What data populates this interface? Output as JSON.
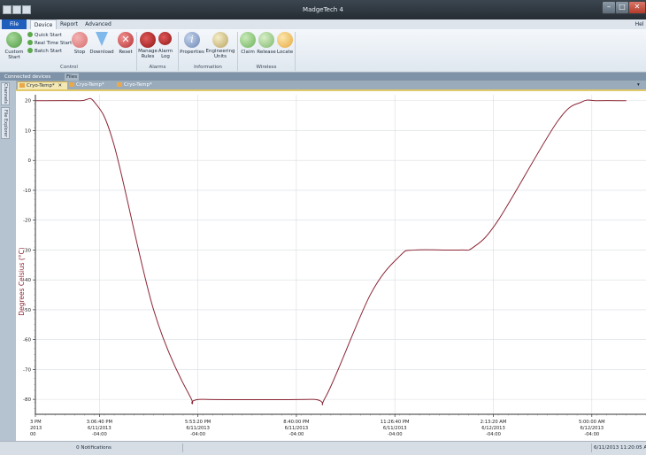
{
  "window": {
    "title": "MadgeTech 4"
  },
  "ribbon": {
    "tabs": [
      "File",
      "Device",
      "Report",
      "Advanced"
    ],
    "help_label": "Hel",
    "groups": {
      "control": {
        "label": "Control",
        "custom_start": "Custom\nStart",
        "quick_start": "Quick Start",
        "real_time_start": "Real Time Start",
        "batch_start": "Batch Start",
        "stop": "Stop",
        "download": "Download",
        "reset": "Reset"
      },
      "alarms": {
        "label": "Alarms",
        "manage_rules": "Manage\nRules",
        "alarm_log": "Alarm\nLog"
      },
      "information": {
        "label": "Information",
        "properties": "Properties",
        "engineering_units": "Engineering\nUnits"
      },
      "wireless": {
        "label": "Wireless",
        "claim": "Claim",
        "release": "Release",
        "locate": "Locate"
      }
    }
  },
  "connected_bar": {
    "tabs": [
      "Connected devices",
      "Files"
    ]
  },
  "side_tabs": [
    "Channels",
    "File Explorer"
  ],
  "document_tabs": [
    "Cryo-Temp*",
    "Cryo-Temp*",
    "Cryo-Temp*"
  ],
  "chart_data": {
    "type": "line",
    "ylabel": "Degrees Celsius (°C)",
    "ylim": [
      -85,
      22
    ],
    "yticks": [
      20,
      10,
      0,
      -10,
      -20,
      -30,
      -40,
      -50,
      -60,
      -70,
      -80
    ],
    "xlim": [
      0,
      62
    ],
    "xticks": [
      {
        "x": 0,
        "lines": [
          "3 PM",
          "2013",
          "00"
        ]
      },
      {
        "x": 6.5,
        "lines": [
          "3:06:40 PM",
          "6/11/2013",
          "-04:00"
        ]
      },
      {
        "x": 16.5,
        "lines": [
          "5:53:20 PM",
          "6/11/2013",
          "-04:00"
        ]
      },
      {
        "x": 26.5,
        "lines": [
          "8:40:00 PM",
          "6/11/2013",
          "-04:00"
        ]
      },
      {
        "x": 36.5,
        "lines": [
          "11:26:40 PM",
          "6/11/2013",
          "-04:00"
        ]
      },
      {
        "x": 46.5,
        "lines": [
          "2:13:20 AM",
          "6/12/2013",
          "-04:00"
        ]
      },
      {
        "x": 56.5,
        "lines": [
          "5:00:00 AM",
          "6/12/2013",
          "-04:00"
        ]
      }
    ],
    "grid": true,
    "color": "#8b2434",
    "series": [
      {
        "points": [
          [
            0,
            20
          ],
          [
            4.5,
            20
          ],
          [
            6,
            19.5
          ],
          [
            8,
            5
          ],
          [
            12,
            -50
          ],
          [
            15.7,
            -79
          ],
          [
            17,
            -80
          ],
          [
            28,
            -80
          ],
          [
            29.5,
            -79
          ],
          [
            34,
            -45
          ],
          [
            37,
            -32
          ],
          [
            38.5,
            -30
          ],
          [
            43,
            -30
          ],
          [
            44.5,
            -29
          ],
          [
            47,
            -20
          ],
          [
            53,
            13
          ],
          [
            55.5,
            19.6
          ],
          [
            57,
            20
          ],
          [
            60,
            20
          ]
        ]
      }
    ]
  },
  "status": {
    "notifications": "0 Notifications",
    "datetime": "6/11/2013 11:20:05 AM"
  }
}
